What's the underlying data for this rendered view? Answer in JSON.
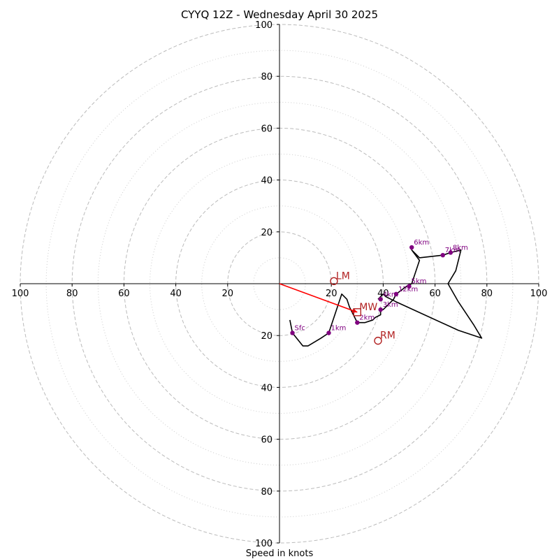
{
  "chart_data": {
    "type": "line",
    "title": "CYYQ 12Z - Wednesday April 30 2025",
    "xlabel": "Speed in knots",
    "xlim": [
      -100,
      100
    ],
    "ylim": [
      -100,
      100
    ],
    "grid": true,
    "rings": [
      20,
      40,
      60,
      80,
      100
    ],
    "minor_rings": [
      10,
      30,
      50,
      70,
      90
    ],
    "ticks_left": [
      "100",
      "80",
      "60",
      "40",
      "20"
    ],
    "ticks_right": [
      "20",
      "40",
      "60",
      "80",
      "100"
    ],
    "ticks_up": [
      "20",
      "40",
      "60",
      "80",
      "100"
    ],
    "ticks_down": [
      "20",
      "40",
      "60",
      "80",
      "100"
    ],
    "colors": {
      "hodograph": "#000000",
      "height_markers": "#800080",
      "motion": "#b22222",
      "mean_wind_vector": "#ff0000",
      "grid": "#bbbbbb"
    },
    "hodograph": {
      "name": "",
      "x": [
        4,
        5,
        9,
        11,
        16,
        19,
        20,
        23,
        24,
        26,
        27,
        30,
        33,
        36,
        37,
        39,
        39,
        40,
        41,
        42,
        44,
        45,
        49,
        51,
        54,
        51,
        54,
        63,
        66,
        70,
        68,
        65,
        69,
        75,
        78,
        69,
        45,
        41,
        40,
        39,
        38
      ],
      "y": [
        -14,
        -19,
        -24,
        -24,
        -21,
        -19,
        -16,
        -7,
        -4,
        -6,
        -9,
        -15,
        -15,
        -14,
        -13,
        -12,
        -10,
        -10,
        -9,
        -8,
        -6,
        -4,
        -1,
        0,
        9,
        13,
        10,
        11,
        12,
        13,
        5,
        0,
        -7,
        -16,
        -21,
        -18,
        -7,
        -5,
        -4,
        -5,
        -6
      ]
    },
    "height_markers": [
      {
        "label": "Sfc",
        "x": 5,
        "y": -19
      },
      {
        "label": "1km",
        "x": 19,
        "y": -19
      },
      {
        "label": "2km",
        "x": 30,
        "y": -15
      },
      {
        "label": "3km",
        "x": 39,
        "y": -10
      },
      {
        "label": "4km",
        "x": 39,
        "y": -6
      },
      {
        "label": "5km",
        "x": 50,
        "y": -1
      },
      {
        "label": "6km",
        "x": 51,
        "y": 14
      },
      {
        "label": "7km",
        "x": 63,
        "y": 11
      },
      {
        "label": "8km",
        "x": 66,
        "y": 12
      },
      {
        "label": "12km",
        "x": 45,
        "y": -4
      }
    ],
    "storm_motion": [
      {
        "label": "LM",
        "marker": "circle",
        "x": 21,
        "y": 1
      },
      {
        "label": "RM",
        "marker": "circle",
        "x": 38,
        "y": -22
      },
      {
        "label": "MW",
        "marker": "square",
        "x": 30,
        "y": -11
      }
    ],
    "mean_wind_vector": {
      "x": 30,
      "y": -11
    }
  }
}
